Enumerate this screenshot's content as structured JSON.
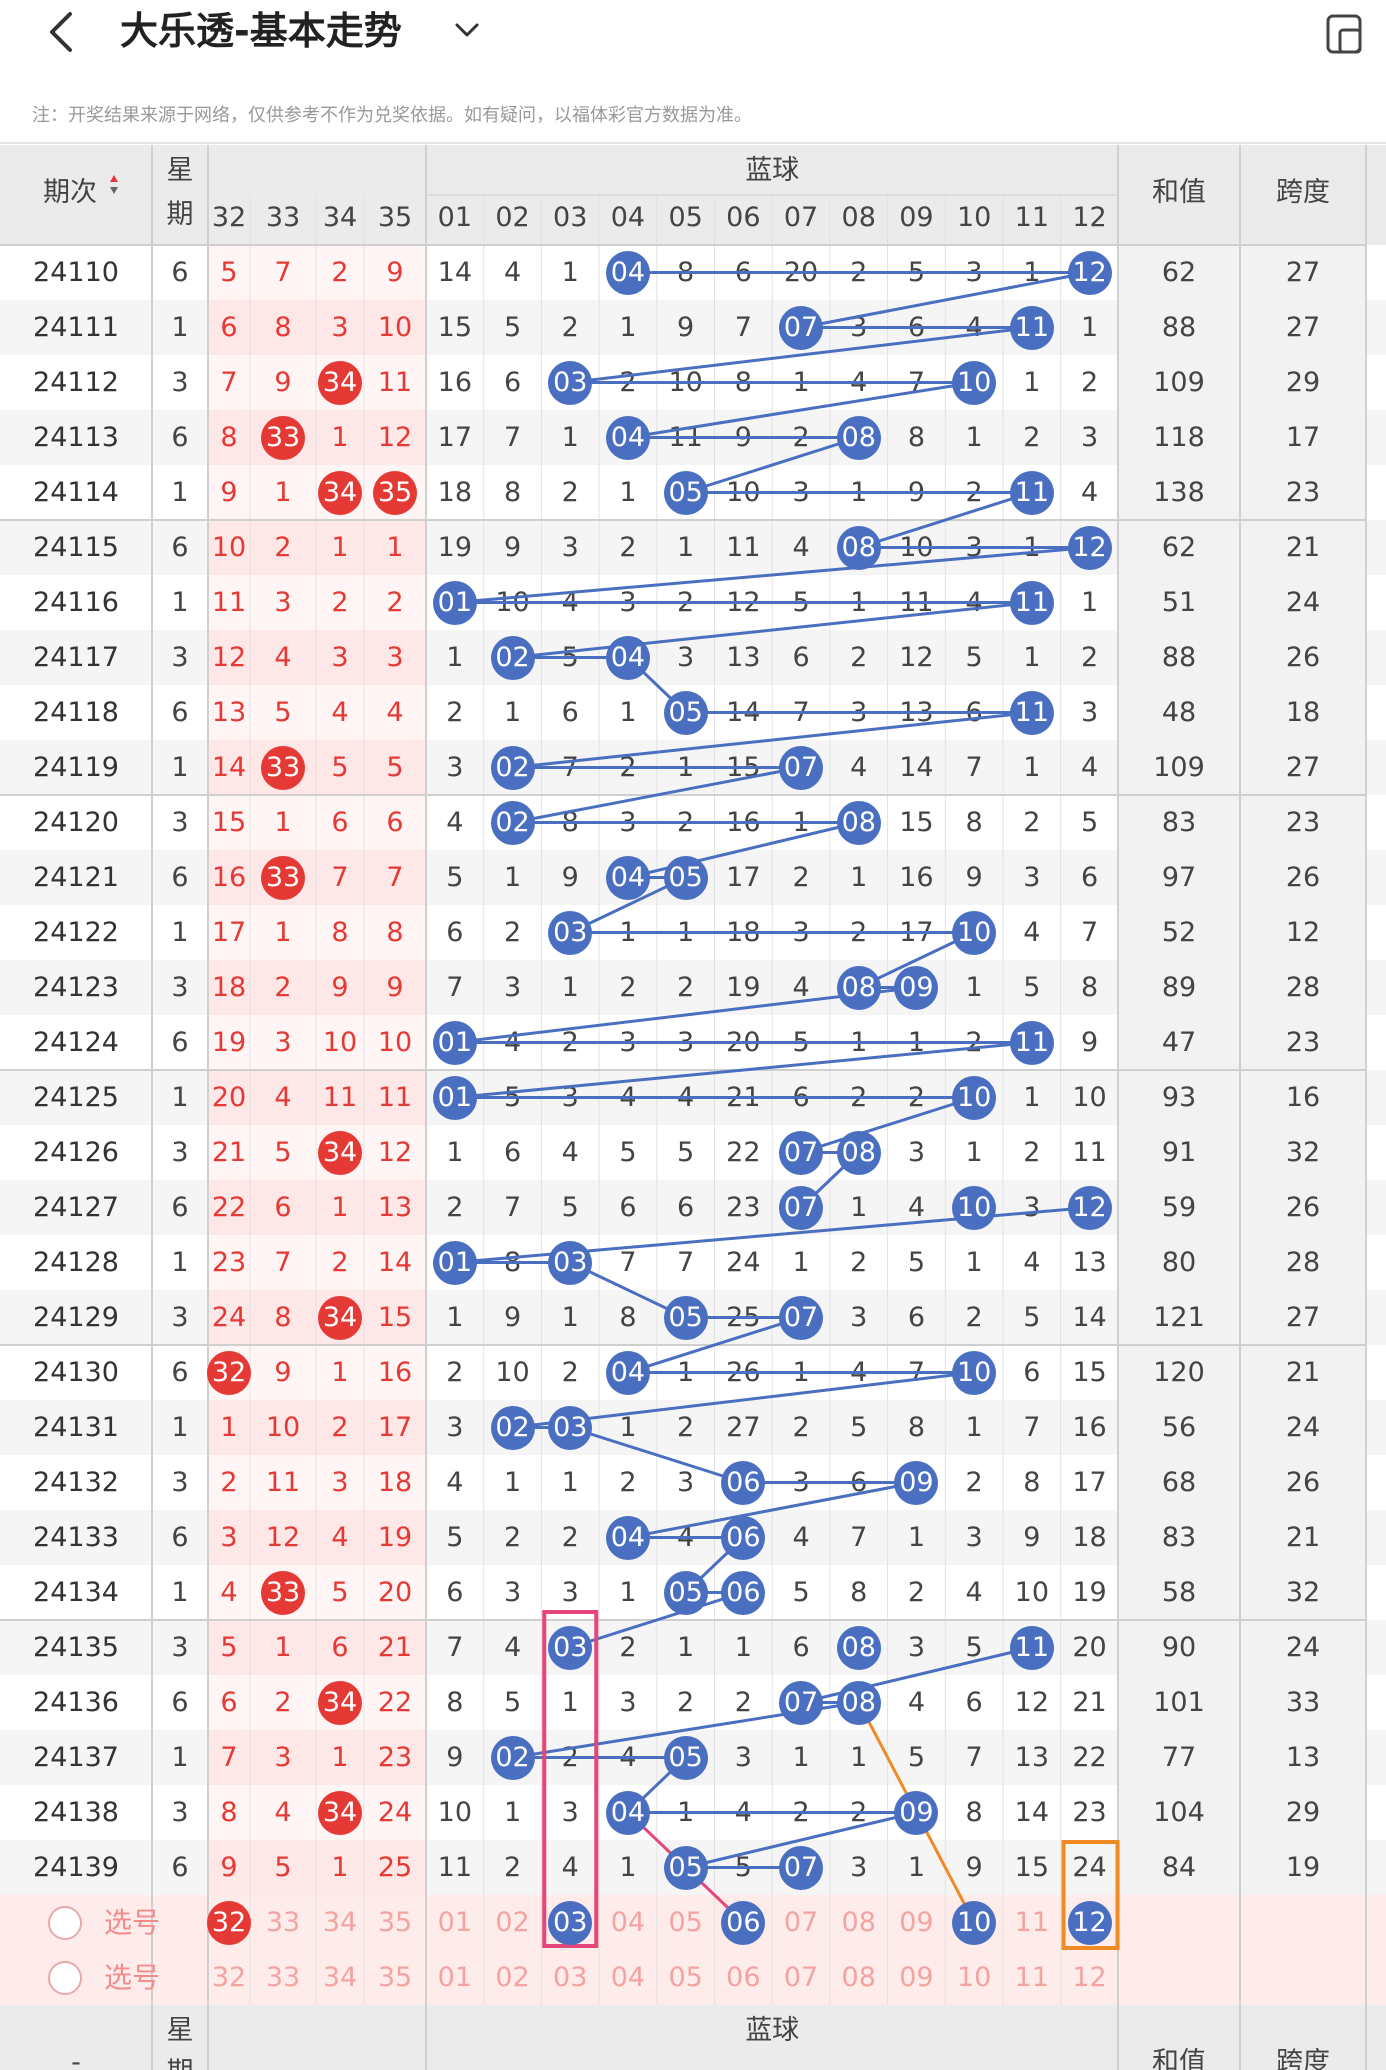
{
  "header": {
    "title": "大乐透-基本走势",
    "notice": "注：开奖结果来源于网络，仅供参考不作为兑奖依据。如有疑问，以福体彩官方数据为准。"
  },
  "table": {
    "col_issue": "期次",
    "col_weekday_top": "星",
    "col_weekday_bottom": "期",
    "blue_label": "蓝球",
    "col_sum": "和值",
    "col_span": "跨度",
    "red_headers": [
      "32",
      "33",
      "34",
      "35"
    ],
    "blue_headers": [
      "01",
      "02",
      "03",
      "04",
      "05",
      "06",
      "07",
      "08",
      "09",
      "10",
      "11",
      "12"
    ],
    "footer_issue": "-",
    "pick_label": "选号",
    "rows": [
      {
        "issue": "24110",
        "weekday": "6",
        "red": [
          "5",
          "7",
          "2",
          "9"
        ],
        "blue": [
          "14",
          "4",
          "1",
          "04",
          "8",
          "6",
          "20",
          "2",
          "5",
          "3",
          "1",
          "12"
        ],
        "sum": "62",
        "span": "27"
      },
      {
        "issue": "24111",
        "weekday": "1",
        "red": [
          "6",
          "8",
          "3",
          "10"
        ],
        "blue": [
          "15",
          "5",
          "2",
          "1",
          "9",
          "7",
          "07",
          "3",
          "6",
          "4",
          "11",
          "1"
        ],
        "sum": "88",
        "span": "27"
      },
      {
        "issue": "24112",
        "weekday": "3",
        "red": [
          "7",
          "9",
          "34",
          "11"
        ],
        "blue": [
          "16",
          "6",
          "03",
          "2",
          "10",
          "8",
          "1",
          "4",
          "7",
          "10",
          "1",
          "2"
        ],
        "sum": "109",
        "span": "29"
      },
      {
        "issue": "24113",
        "weekday": "6",
        "red": [
          "8",
          "33",
          "1",
          "12"
        ],
        "blue": [
          "17",
          "7",
          "1",
          "04",
          "11",
          "9",
          "2",
          "08",
          "8",
          "1",
          "2",
          "3"
        ],
        "sum": "118",
        "span": "17"
      },
      {
        "issue": "24114",
        "weekday": "1",
        "red": [
          "9",
          "1",
          "34",
          "35"
        ],
        "blue": [
          "18",
          "8",
          "2",
          "1",
          "05",
          "10",
          "3",
          "1",
          "9",
          "2",
          "11",
          "4"
        ],
        "sum": "138",
        "span": "23"
      },
      {
        "issue": "24115",
        "weekday": "6",
        "red": [
          "10",
          "2",
          "1",
          "1"
        ],
        "blue": [
          "19",
          "9",
          "3",
          "2",
          "1",
          "11",
          "4",
          "08",
          "10",
          "3",
          "1",
          "12"
        ],
        "sum": "62",
        "span": "21"
      },
      {
        "issue": "24116",
        "weekday": "1",
        "red": [
          "11",
          "3",
          "2",
          "2"
        ],
        "blue": [
          "01",
          "10",
          "4",
          "3",
          "2",
          "12",
          "5",
          "1",
          "11",
          "4",
          "11",
          "1"
        ],
        "sum": "51",
        "span": "24"
      },
      {
        "issue": "24117",
        "weekday": "3",
        "red": [
          "12",
          "4",
          "3",
          "3"
        ],
        "blue": [
          "1",
          "02",
          "5",
          "04",
          "3",
          "13",
          "6",
          "2",
          "12",
          "5",
          "1",
          "2"
        ],
        "sum": "88",
        "span": "26"
      },
      {
        "issue": "24118",
        "weekday": "6",
        "red": [
          "13",
          "5",
          "4",
          "4"
        ],
        "blue": [
          "2",
          "1",
          "6",
          "1",
          "05",
          "14",
          "7",
          "3",
          "13",
          "6",
          "11",
          "3"
        ],
        "sum": "48",
        "span": "18"
      },
      {
        "issue": "24119",
        "weekday": "1",
        "red": [
          "14",
          "33",
          "5",
          "5"
        ],
        "blue": [
          "3",
          "02",
          "7",
          "2",
          "1",
          "15",
          "07",
          "4",
          "14",
          "7",
          "1",
          "4"
        ],
        "sum": "109",
        "span": "27"
      },
      {
        "issue": "24120",
        "weekday": "3",
        "red": [
          "15",
          "1",
          "6",
          "6"
        ],
        "blue": [
          "4",
          "02",
          "8",
          "3",
          "2",
          "16",
          "1",
          "08",
          "15",
          "8",
          "2",
          "5"
        ],
        "sum": "83",
        "span": "23"
      },
      {
        "issue": "24121",
        "weekday": "6",
        "red": [
          "16",
          "33",
          "7",
          "7"
        ],
        "blue": [
          "5",
          "1",
          "9",
          "04",
          "05",
          "17",
          "2",
          "1",
          "16",
          "9",
          "3",
          "6"
        ],
        "sum": "97",
        "span": "26"
      },
      {
        "issue": "24122",
        "weekday": "1",
        "red": [
          "17",
          "1",
          "8",
          "8"
        ],
        "blue": [
          "6",
          "2",
          "03",
          "1",
          "1",
          "18",
          "3",
          "2",
          "17",
          "10",
          "4",
          "7"
        ],
        "sum": "52",
        "span": "12"
      },
      {
        "issue": "24123",
        "weekday": "3",
        "red": [
          "18",
          "2",
          "9",
          "9"
        ],
        "blue": [
          "7",
          "3",
          "1",
          "2",
          "2",
          "19",
          "4",
          "08",
          "09",
          "1",
          "5",
          "8"
        ],
        "sum": "89",
        "span": "28"
      },
      {
        "issue": "24124",
        "weekday": "6",
        "red": [
          "19",
          "3",
          "10",
          "10"
        ],
        "blue": [
          "01",
          "4",
          "2",
          "3",
          "3",
          "20",
          "5",
          "1",
          "1",
          "2",
          "11",
          "9"
        ],
        "sum": "47",
        "span": "23"
      },
      {
        "issue": "24125",
        "weekday": "1",
        "red": [
          "20",
          "4",
          "11",
          "11"
        ],
        "blue": [
          "01",
          "5",
          "3",
          "4",
          "4",
          "21",
          "6",
          "2",
          "2",
          "10",
          "1",
          "10"
        ],
        "sum": "93",
        "span": "16"
      },
      {
        "issue": "24126",
        "weekday": "3",
        "red": [
          "21",
          "5",
          "34",
          "12"
        ],
        "blue": [
          "1",
          "6",
          "4",
          "5",
          "5",
          "22",
          "07",
          "08",
          "3",
          "1",
          "2",
          "11"
        ],
        "sum": "91",
        "span": "32"
      },
      {
        "issue": "24127",
        "weekday": "6",
        "red": [
          "22",
          "6",
          "1",
          "13"
        ],
        "blue": [
          "2",
          "7",
          "5",
          "6",
          "6",
          "23",
          "07",
          "1",
          "4",
          "10",
          "3",
          "12"
        ],
        "sum": "59",
        "span": "26"
      },
      {
        "issue": "24128",
        "weekday": "1",
        "red": [
          "23",
          "7",
          "2",
          "14"
        ],
        "blue": [
          "01",
          "8",
          "03",
          "7",
          "7",
          "24",
          "1",
          "2",
          "5",
          "1",
          "4",
          "13"
        ],
        "sum": "80",
        "span": "28"
      },
      {
        "issue": "24129",
        "weekday": "3",
        "red": [
          "24",
          "8",
          "34",
          "15"
        ],
        "blue": [
          "1",
          "9",
          "1",
          "8",
          "05",
          "25",
          "07",
          "3",
          "6",
          "2",
          "5",
          "14"
        ],
        "sum": "121",
        "span": "27"
      },
      {
        "issue": "24130",
        "weekday": "6",
        "red": [
          "32",
          "9",
          "1",
          "16"
        ],
        "blue": [
          "2",
          "10",
          "2",
          "04",
          "1",
          "26",
          "1",
          "4",
          "7",
          "10",
          "6",
          "15"
        ],
        "sum": "120",
        "span": "21"
      },
      {
        "issue": "24131",
        "weekday": "1",
        "red": [
          "1",
          "10",
          "2",
          "17"
        ],
        "blue": [
          "3",
          "02",
          "03",
          "1",
          "2",
          "27",
          "2",
          "5",
          "8",
          "1",
          "7",
          "16"
        ],
        "sum": "56",
        "span": "24"
      },
      {
        "issue": "24132",
        "weekday": "3",
        "red": [
          "2",
          "11",
          "3",
          "18"
        ],
        "blue": [
          "4",
          "1",
          "1",
          "2",
          "3",
          "06",
          "3",
          "6",
          "09",
          "2",
          "8",
          "17"
        ],
        "sum": "68",
        "span": "26"
      },
      {
        "issue": "24133",
        "weekday": "6",
        "red": [
          "3",
          "12",
          "4",
          "19"
        ],
        "blue": [
          "5",
          "2",
          "2",
          "04",
          "4",
          "06",
          "4",
          "7",
          "1",
          "3",
          "9",
          "18"
        ],
        "sum": "83",
        "span": "21"
      },
      {
        "issue": "24134",
        "weekday": "1",
        "red": [
          "4",
          "33",
          "5",
          "20"
        ],
        "blue": [
          "6",
          "3",
          "3",
          "1",
          "05",
          "06",
          "5",
          "8",
          "2",
          "4",
          "10",
          "19"
        ],
        "sum": "58",
        "span": "32"
      },
      {
        "issue": "24135",
        "weekday": "3",
        "red": [
          "5",
          "1",
          "6",
          "21"
        ],
        "blue": [
          "7",
          "4",
          "03",
          "2",
          "1",
          "1",
          "6",
          "08",
          "3",
          "5",
          "11",
          "20"
        ],
        "sum": "90",
        "span": "24"
      },
      {
        "issue": "24136",
        "weekday": "6",
        "red": [
          "6",
          "2",
          "34",
          "22"
        ],
        "blue": [
          "8",
          "5",
          "1",
          "3",
          "2",
          "2",
          "07",
          "08",
          "4",
          "6",
          "12",
          "21"
        ],
        "sum": "101",
        "span": "33"
      },
      {
        "issue": "24137",
        "weekday": "1",
        "red": [
          "7",
          "3",
          "1",
          "23"
        ],
        "blue": [
          "9",
          "02",
          "2",
          "4",
          "05",
          "3",
          "1",
          "1",
          "5",
          "7",
          "13",
          "22"
        ],
        "sum": "77",
        "span": "13"
      },
      {
        "issue": "24138",
        "weekday": "3",
        "red": [
          "8",
          "4",
          "34",
          "24"
        ],
        "blue": [
          "10",
          "1",
          "3",
          "04",
          "1",
          "4",
          "2",
          "2",
          "09",
          "8",
          "14",
          "23"
        ],
        "sum": "104",
        "span": "29"
      },
      {
        "issue": "24139",
        "weekday": "6",
        "red": [
          "9",
          "5",
          "1",
          "25"
        ],
        "blue": [
          "11",
          "2",
          "4",
          "1",
          "05",
          "5",
          "07",
          "3",
          "1",
          "9",
          "15",
          "24"
        ],
        "sum": "84",
        "span": "19"
      }
    ],
    "pick_rows": [
      {
        "red": [
          "32",
          "33",
          "34",
          "35"
        ],
        "blue": [
          "01",
          "02",
          "03",
          "04",
          "05",
          "06",
          "07",
          "08",
          "09",
          "10",
          "11",
          "12"
        ]
      },
      {
        "red": [
          "32",
          "33",
          "34",
          "35"
        ],
        "blue": [
          "01",
          "02",
          "03",
          "04",
          "05",
          "06",
          "07",
          "08",
          "09",
          "10",
          "11",
          "12"
        ]
      }
    ]
  },
  "colors": {
    "red": "#e53935",
    "blue": "#4a6fc1",
    "pink": "#e6457a",
    "orange": "#f08a24"
  },
  "icons": [
    "back-icon",
    "chevron-down-icon",
    "device-icon",
    "sort-icon",
    "radio-icon"
  ]
}
